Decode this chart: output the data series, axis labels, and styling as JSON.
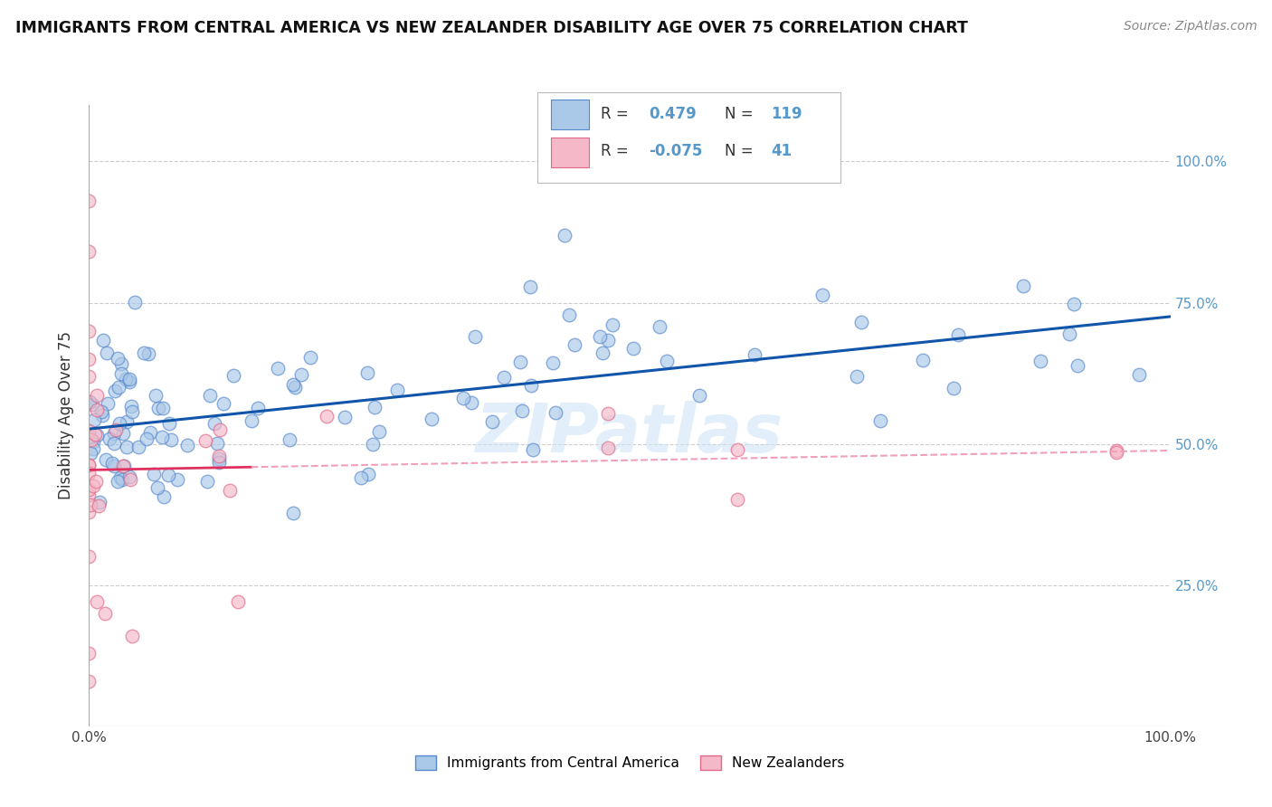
{
  "title": "IMMIGRANTS FROM CENTRAL AMERICA VS NEW ZEALANDER DISABILITY AGE OVER 75 CORRELATION CHART",
  "source": "Source: ZipAtlas.com",
  "ylabel": "Disability Age Over 75",
  "blue_R": 0.479,
  "blue_N": 119,
  "pink_R": -0.075,
  "pink_N": 41,
  "blue_color": "#aac8e8",
  "blue_edge": "#5588cc",
  "pink_color": "#f5b8c8",
  "pink_edge": "#e06888",
  "blue_line_color": "#1155aa",
  "pink_line_color": "#e03060",
  "pink_dash_color": "#f0a0b8",
  "background": "#ffffff",
  "grid_color": "#cccccc",
  "right_label_color": "#5599cc",
  "watermark": "ZIPatlas",
  "yticks": [
    0.25,
    0.5,
    0.75,
    1.0
  ],
  "ytick_labels": [
    "25.0%",
    "50.0%",
    "75.0%",
    "100.0%"
  ],
  "xlim": [
    0.0,
    1.0
  ],
  "ylim": [
    0.0,
    1.1
  ]
}
